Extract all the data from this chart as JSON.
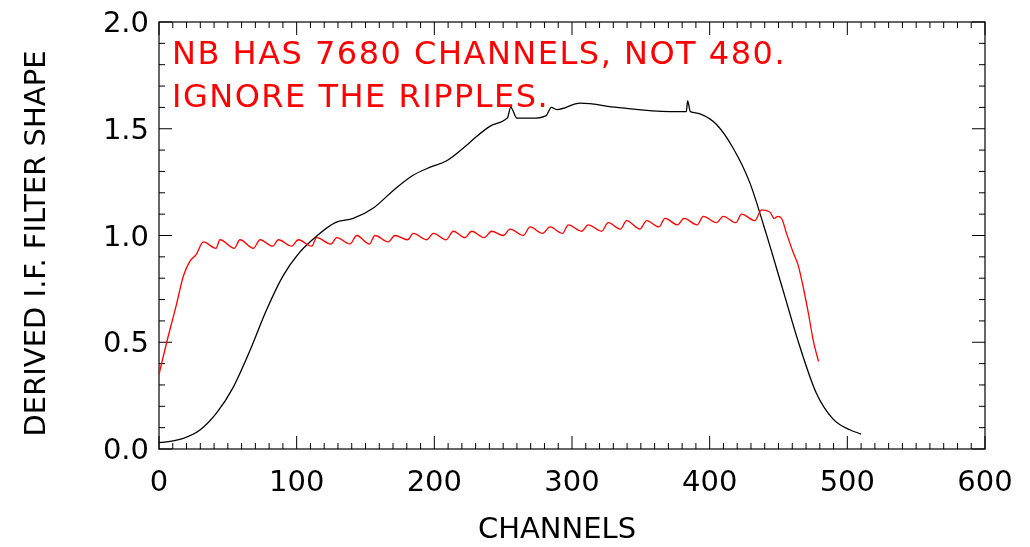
{
  "chart_data": {
    "type": "line",
    "xlabel": "CHANNELS",
    "ylabel": "DERIVED I.F. FILTER SHAPE",
    "annotations": [
      "NB HAS 7680 CHANNELS, NOT 480.",
      "IGNORE THE RIPPLES."
    ],
    "xlim": [
      0,
      600
    ],
    "ylim": [
      0,
      2.0
    ],
    "xticks": [
      0,
      {
        "value": 10,
        "label": null
      },
      {
        "value": 20,
        "label": null
      },
      {
        "value": 30,
        "label": null
      },
      {
        "value": 40,
        "label": null
      },
      {
        "value": 50,
        "label": null
      },
      {
        "value": 60,
        "label": null
      },
      {
        "value": 70,
        "label": null
      },
      {
        "value": 80,
        "label": null
      },
      {
        "value": 90,
        "label": null
      },
      100,
      {
        "value": 110,
        "label": null
      },
      {
        "value": 120,
        "label": null
      },
      {
        "value": 130,
        "label": null
      },
      {
        "value": 140,
        "label": null
      },
      {
        "value": 150,
        "label": null
      },
      {
        "value": 160,
        "label": null
      },
      {
        "value": 170,
        "label": null
      },
      {
        "value": 180,
        "label": null
      },
      {
        "value": 190,
        "label": null
      },
      200,
      {
        "value": 210,
        "label": null
      },
      {
        "value": 220,
        "label": null
      },
      {
        "value": 230,
        "label": null
      },
      {
        "value": 240,
        "label": null
      },
      {
        "value": 250,
        "label": null
      },
      {
        "value": 260,
        "label": null
      },
      {
        "value": 270,
        "label": null
      },
      {
        "value": 280,
        "label": null
      },
      {
        "value": 290,
        "label": null
      },
      300,
      {
        "value": 310,
        "label": null
      },
      {
        "value": 320,
        "label": null
      },
      {
        "value": 330,
        "label": null
      },
      {
        "value": 340,
        "label": null
      },
      {
        "value": 350,
        "label": null
      },
      {
        "value": 360,
        "label": null
      },
      {
        "value": 370,
        "label": null
      },
      {
        "value": 380,
        "label": null
      },
      {
        "value": 390,
        "label": null
      },
      400,
      {
        "value": 410,
        "label": null
      },
      {
        "value": 420,
        "label": null
      },
      {
        "value": 430,
        "label": null
      },
      {
        "value": 440,
        "label": null
      },
      {
        "value": 450,
        "label": null
      },
      {
        "value": 460,
        "label": null
      },
      {
        "value": 470,
        "label": null
      },
      {
        "value": 480,
        "label": null
      },
      {
        "value": 490,
        "label": null
      },
      500,
      {
        "value": 510,
        "label": null
      },
      {
        "value": 520,
        "label": null
      },
      {
        "value": 530,
        "label": null
      },
      {
        "value": 540,
        "label": null
      },
      {
        "value": 550,
        "label": null
      },
      {
        "value": 560,
        "label": null
      },
      {
        "value": 570,
        "label": null
      },
      {
        "value": 580,
        "label": null
      },
      {
        "value": 590,
        "label": null
      },
      600
    ],
    "yticks": [
      {
        "value": 0,
        "label": "0.0"
      },
      {
        "value": 0.1,
        "label": null
      },
      {
        "value": 0.2,
        "label": null
      },
      {
        "value": 0.3,
        "label": null
      },
      {
        "value": 0.4,
        "label": null
      },
      0.5,
      {
        "value": 0.6,
        "label": null
      },
      {
        "value": 0.7,
        "label": null
      },
      {
        "value": 0.8,
        "label": null
      },
      {
        "value": 0.9,
        "label": null
      },
      {
        "value": 1.0,
        "label": "1.0"
      },
      {
        "value": 1.1,
        "label": null
      },
      {
        "value": 1.2,
        "label": null
      },
      {
        "value": 1.3,
        "label": null
      },
      {
        "value": 1.4,
        "label": null
      },
      1.5,
      {
        "value": 1.6,
        "label": null
      },
      {
        "value": 1.7,
        "label": null
      },
      {
        "value": 1.8,
        "label": null
      },
      {
        "value": 1.9,
        "label": null
      },
      {
        "value": 2.0,
        "label": "2.0"
      }
    ],
    "grid": false,
    "marker": "none",
    "line_style": "solid",
    "series": [
      {
        "color": "#000000",
        "x": [
          0,
          17.7,
          30,
          42,
          54,
          66,
          78,
          90,
          102,
          115,
          128,
          141,
          156,
          170,
          184,
          197,
          209,
          223,
          230,
          240,
          253,
          255.5,
          260,
          274,
          281,
          285,
          289,
          306,
          332.6,
          371,
          383,
          384,
          386,
          393,
          405,
          417,
          429,
          441,
          453,
          465.5,
          477.6,
          489.7,
          501.8,
          510
        ],
        "values": [
          0.03,
          0.05,
          0.09,
          0.17,
          0.29,
          0.46,
          0.65,
          0.81,
          0.92,
          1.0,
          1.06,
          1.08,
          1.13,
          1.21,
          1.28,
          1.32,
          1.35,
          1.42,
          1.46,
          1.51,
          1.55,
          1.6,
          1.55,
          1.55,
          1.56,
          1.6,
          1.59,
          1.62,
          1.6,
          1.58,
          1.58,
          1.63,
          1.58,
          1.57,
          1.52,
          1.41,
          1.25,
          1.01,
          0.75,
          0.48,
          0.26,
          0.14,
          0.09,
          0.07
        ]
      },
      {
        "color": "#ff0000",
        "x": [
          0,
          5.6,
          12.8,
          17.7,
          22.5,
          27,
          32.2,
          41.4,
          44.3,
          54.7,
          58.8,
          68.5,
          73.4,
          82.6,
          86.7,
          96.4,
          101.2,
          110.9,
          114.5,
          124.9,
          129.1,
          138.7,
          143.6,
          152.8,
          156.9,
          166.6,
          171.4,
          180.6,
          184.7,
          194.4,
          199.3,
          208.5,
          213.8,
          222.3,
          227.1,
          236.3,
          241.6,
          250.1,
          255.0,
          264.6,
          269.5,
          278.7,
          284.0,
          293.2,
          297.3,
          306.9,
          311.8,
          321.5,
          326.3,
          335.3,
          339.6,
          349.3,
          354.2,
          363.1,
          367.5,
          376.7,
          381.3,
          391.0,
          395.3,
          405.0,
          409.9,
          419.0,
          423.1,
          432.8,
          437.7,
          443.7,
          446.9,
          449.8,
          452.2,
          455.8,
          460.7,
          464.3,
          467.9,
          471.6,
          475.2,
          479.1
        ],
        "values": [
          0.35,
          0.5,
          0.68,
          0.81,
          0.88,
          0.91,
          0.97,
          0.94,
          0.98,
          0.94,
          0.98,
          0.94,
          0.98,
          0.95,
          0.98,
          0.95,
          0.98,
          0.95,
          0.99,
          0.96,
          0.99,
          0.96,
          1.0,
          0.96,
          1.0,
          0.97,
          1.0,
          0.98,
          1.01,
          0.98,
          1.01,
          0.98,
          1.02,
          0.99,
          1.02,
          0.99,
          1.02,
          1.0,
          1.03,
          1.0,
          1.04,
          1.01,
          1.04,
          1.01,
          1.05,
          1.02,
          1.05,
          1.02,
          1.06,
          1.03,
          1.07,
          1.03,
          1.07,
          1.04,
          1.08,
          1.05,
          1.08,
          1.05,
          1.09,
          1.06,
          1.09,
          1.06,
          1.1,
          1.07,
          1.12,
          1.11,
          1.08,
          1.09,
          1.08,
          1.01,
          0.92,
          0.86,
          0.76,
          0.64,
          0.51,
          0.41
        ]
      }
    ]
  }
}
